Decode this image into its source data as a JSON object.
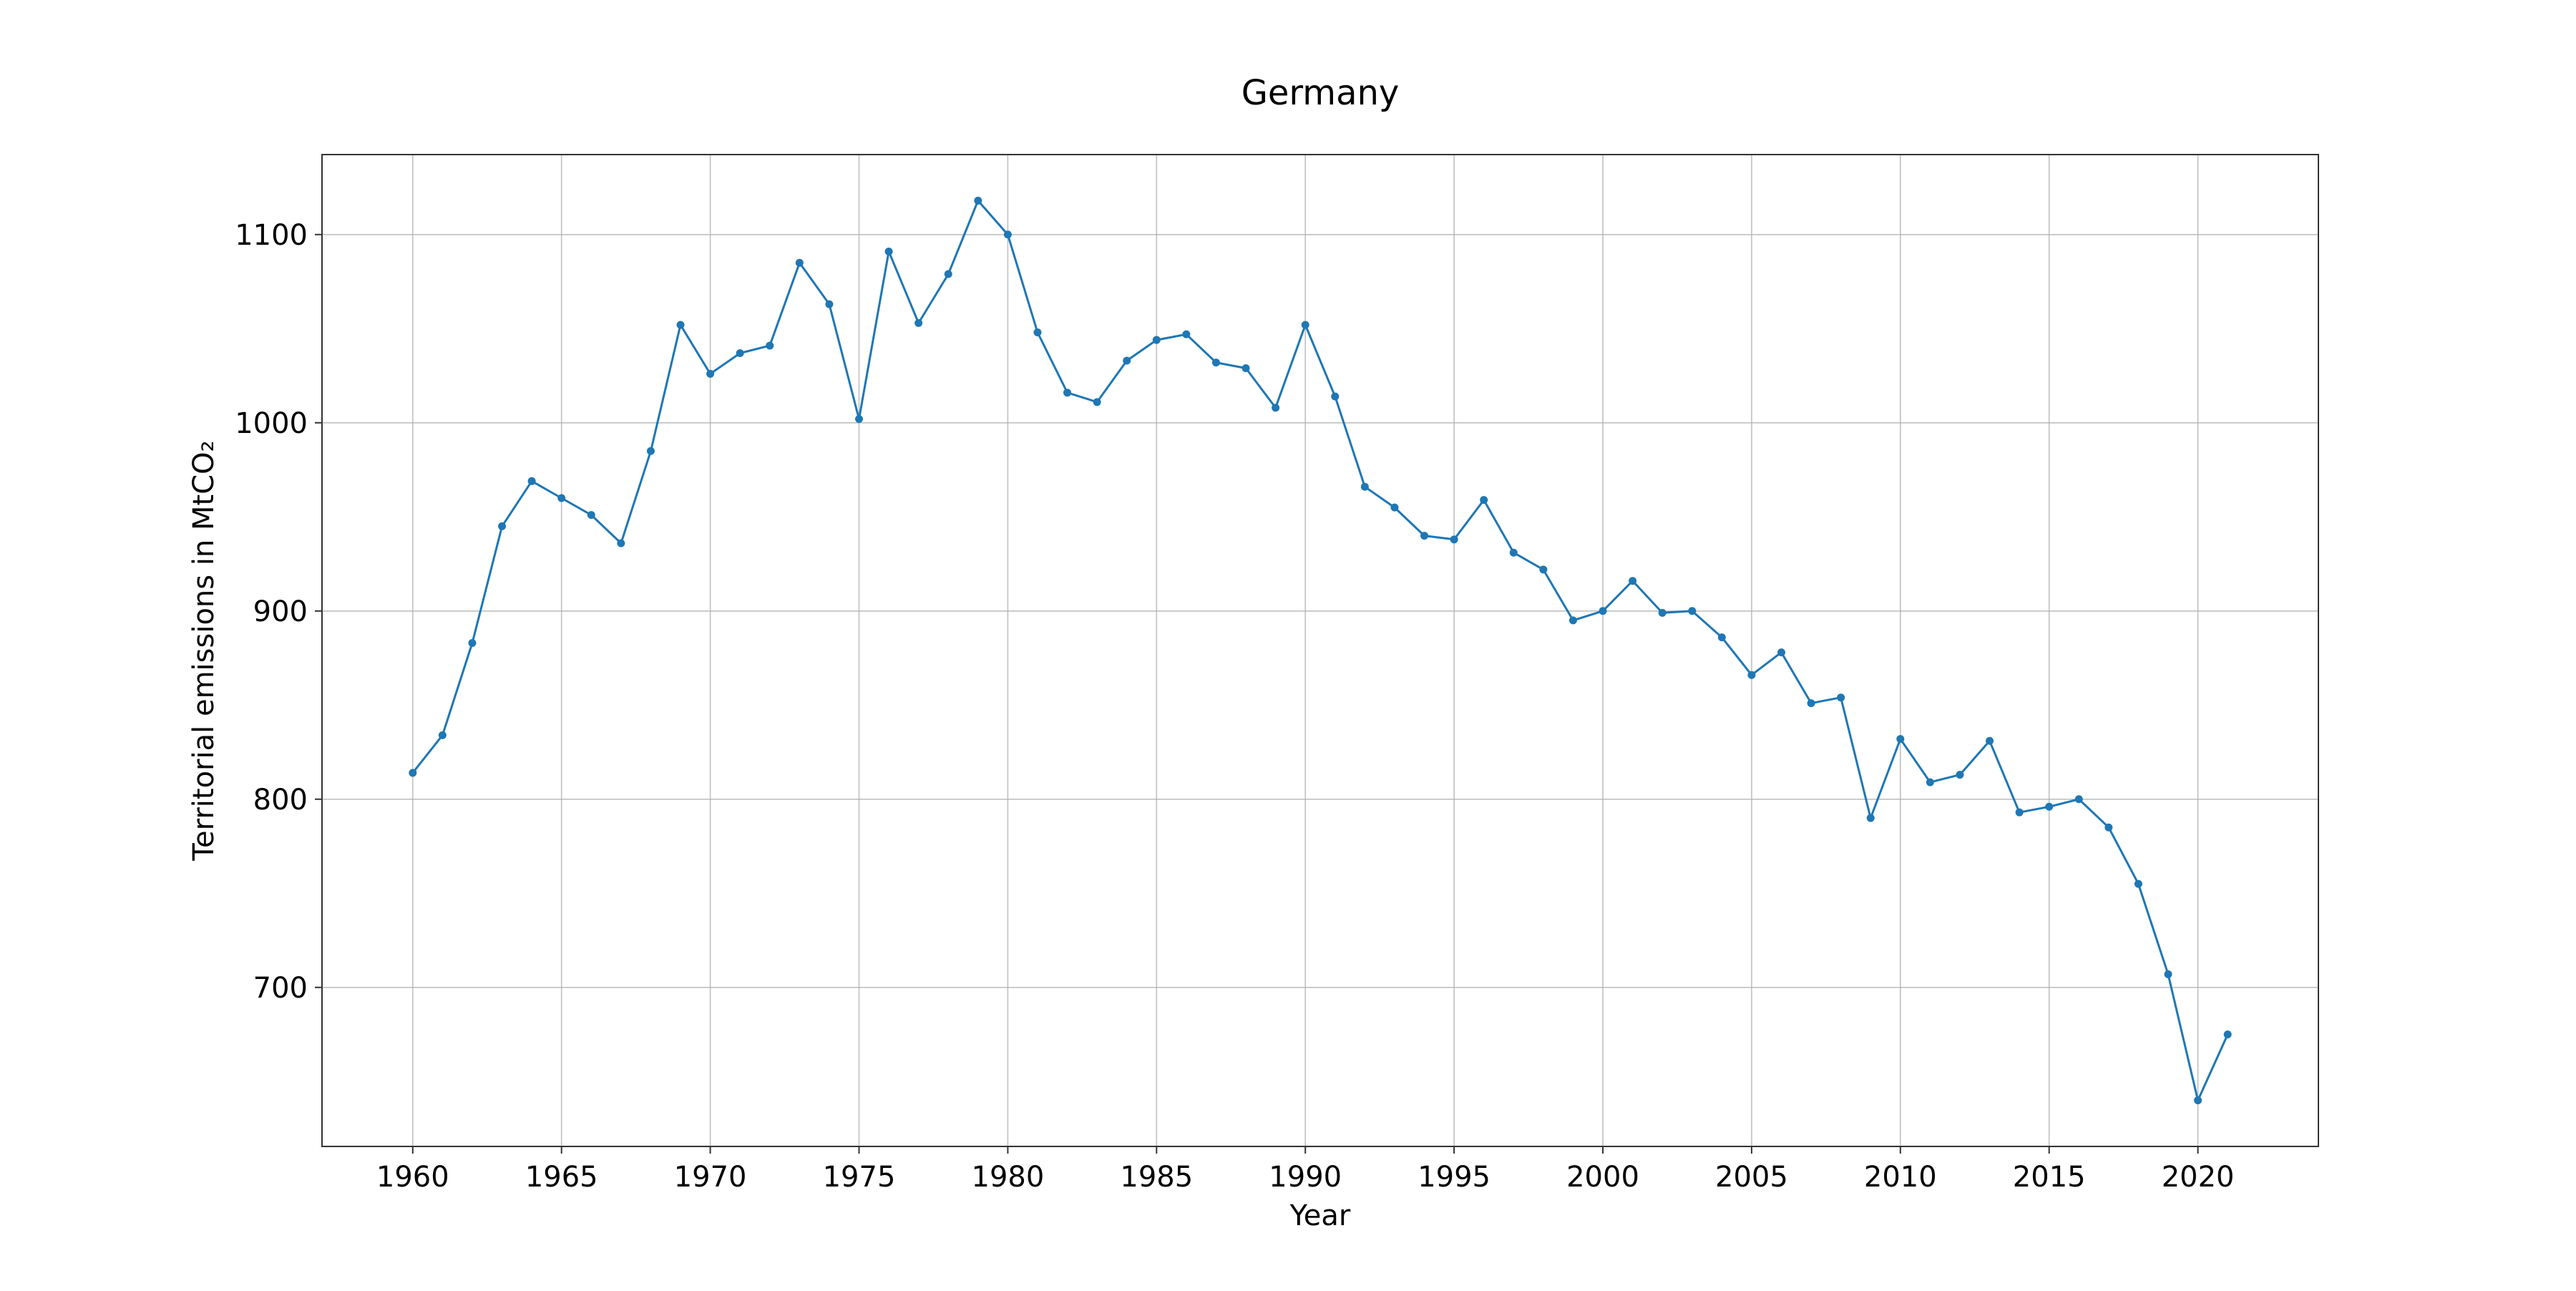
{
  "chart_data": {
    "type": "line",
    "title": "Germany",
    "xlabel": "Year",
    "ylabel": "Territorial emissions in MtCO₂",
    "grid": true,
    "legend": "none",
    "xlim": [
      1956.95,
      2024.05
    ],
    "ylim": [
      615.5,
      1142.5
    ],
    "xticks": [
      1960,
      1965,
      1970,
      1975,
      1980,
      1985,
      1990,
      1995,
      2000,
      2005,
      2010,
      2015,
      2020
    ],
    "yticks": [
      700,
      800,
      900,
      1000,
      1100
    ],
    "line_color": "#1f77b4",
    "series": [
      {
        "x": [
          1960,
          1961,
          1962,
          1963,
          1964,
          1965,
          1966,
          1967,
          1968,
          1969,
          1970,
          1971,
          1972,
          1973,
          1974,
          1975,
          1976,
          1977,
          1978,
          1979,
          1980,
          1981,
          1982,
          1983,
          1984,
          1985,
          1986,
          1987,
          1988,
          1989,
          1990,
          1991,
          1992,
          1993,
          1994,
          1995,
          1996,
          1997,
          1998,
          1999,
          2000,
          2001,
          2002,
          2003,
          2004,
          2005,
          2006,
          2007,
          2008,
          2009,
          2010,
          2011,
          2012,
          2013,
          2014,
          2015,
          2016,
          2017,
          2018,
          2019,
          2020,
          2021
        ],
        "y": [
          814,
          834,
          883,
          945,
          969,
          960,
          951,
          936,
          985,
          1052,
          1026,
          1037,
          1041,
          1085,
          1063,
          1002,
          1091,
          1053,
          1079,
          1118,
          1100,
          1048,
          1016,
          1011,
          1033,
          1044,
          1047,
          1032,
          1029,
          1008,
          1052,
          1014,
          966,
          955,
          940,
          938,
          959,
          931,
          922,
          895,
          900,
          916,
          899,
          900,
          886,
          866,
          878,
          851,
          854,
          790,
          832,
          809,
          813,
          831,
          793,
          796,
          800,
          785,
          755,
          707,
          640,
          675
        ]
      }
    ]
  }
}
